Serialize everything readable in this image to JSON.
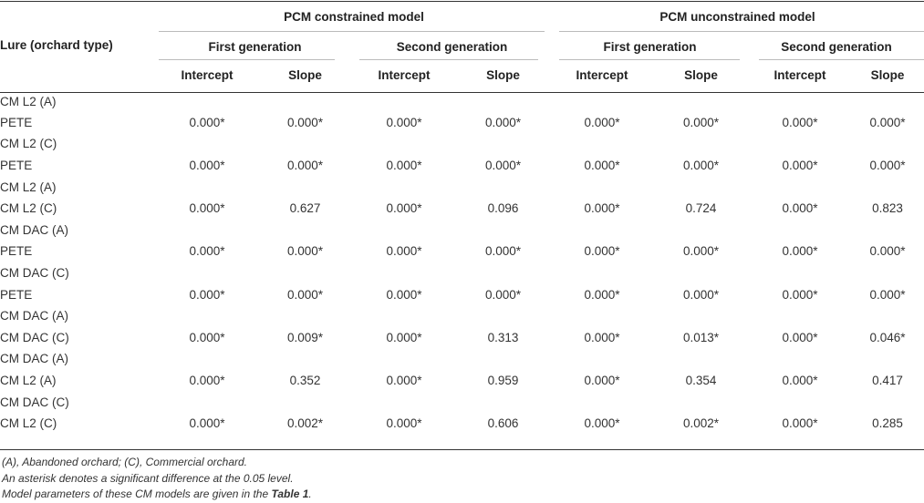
{
  "header": {
    "lure_col": "Lure (orchard type)",
    "models": [
      "PCM constrained model",
      "PCM unconstrained model"
    ],
    "generations": [
      "First generation",
      "Second generation",
      "First generation",
      "Second generation"
    ],
    "params": [
      "Intercept",
      "Slope",
      "Intercept",
      "Slope",
      "Intercept",
      "Slope",
      "Intercept",
      "Slope"
    ]
  },
  "rows": [
    {
      "label": "CM L2 (A)",
      "values": [
        "",
        "",
        "",
        "",
        "",
        "",
        "",
        ""
      ]
    },
    {
      "label": "PETE",
      "values": [
        "0.000*",
        "0.000*",
        "0.000*",
        "0.000*",
        "0.000*",
        "0.000*",
        "0.000*",
        "0.000*"
      ]
    },
    {
      "label": "CM L2 (C)",
      "values": [
        "",
        "",
        "",
        "",
        "",
        "",
        "",
        ""
      ]
    },
    {
      "label": "PETE",
      "values": [
        "0.000*",
        "0.000*",
        "0.000*",
        "0.000*",
        "0.000*",
        "0.000*",
        "0.000*",
        "0.000*"
      ]
    },
    {
      "label": "CM L2 (A)",
      "values": [
        "",
        "",
        "",
        "",
        "",
        "",
        "",
        ""
      ]
    },
    {
      "label": "CM L2 (C)",
      "values": [
        "0.000*",
        "0.627",
        "0.000*",
        "0.096",
        "0.000*",
        "0.724",
        "0.000*",
        "0.823"
      ]
    },
    {
      "label": "CM DAC (A)",
      "values": [
        "",
        "",
        "",
        "",
        "",
        "",
        "",
        ""
      ]
    },
    {
      "label": "PETE",
      "values": [
        "0.000*",
        "0.000*",
        "0.000*",
        "0.000*",
        "0.000*",
        "0.000*",
        "0.000*",
        "0.000*"
      ]
    },
    {
      "label": "CM DAC (C)",
      "values": [
        "",
        "",
        "",
        "",
        "",
        "",
        "",
        ""
      ]
    },
    {
      "label": "PETE",
      "values": [
        "0.000*",
        "0.000*",
        "0.000*",
        "0.000*",
        "0.000*",
        "0.000*",
        "0.000*",
        "0.000*"
      ]
    },
    {
      "label": "CM DAC (A)",
      "values": [
        "",
        "",
        "",
        "",
        "",
        "",
        "",
        ""
      ]
    },
    {
      "label": "CM DAC (C)",
      "values": [
        "0.000*",
        "0.009*",
        "0.000*",
        "0.313",
        "0.000*",
        "0.013*",
        "0.000*",
        "0.046*"
      ]
    },
    {
      "label": "CM DAC (A)",
      "values": [
        "",
        "",
        "",
        "",
        "",
        "",
        "",
        ""
      ]
    },
    {
      "label": "CM L2 (A)",
      "values": [
        "0.000*",
        "0.352",
        "0.000*",
        "0.959",
        "0.000*",
        "0.354",
        "0.000*",
        "0.417"
      ]
    },
    {
      "label": "CM DAC (C)",
      "values": [
        "",
        "",
        "",
        "",
        "",
        "",
        "",
        ""
      ]
    },
    {
      "label": "CM L2 (C)",
      "values": [
        "0.000*",
        "0.002*",
        "0.000*",
        "0.606",
        "0.000*",
        "0.002*",
        "0.000*",
        "0.285"
      ]
    }
  ],
  "footnotes": {
    "line1": "(A), Abandoned orchard; (C), Commercial orchard.",
    "line2": "An asterisk denotes a significant difference at the 0.05 level.",
    "line3_prefix": "Model parameters of these CM models are given in the ",
    "line3_ref": "Table 1",
    "line3_suffix": "."
  }
}
